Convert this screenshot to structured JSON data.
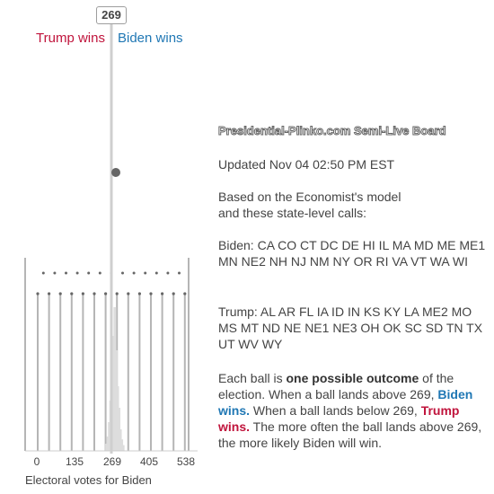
{
  "marker_value": "269",
  "legend": {
    "trump": "Trump wins",
    "biden": "Biden wins"
  },
  "axis": {
    "ticks": [
      "0",
      "135",
      "269",
      "405",
      "538"
    ],
    "title": "Electoral votes for Biden",
    "range": [
      0,
      538
    ],
    "midpoint": 269
  },
  "board": {
    "title": "Presidential-Plinko.com Semi-Live Board",
    "updated": "Updated Nov 04 02:50 PM EST",
    "based_line1": "Based on the Economist's model",
    "based_line2": "and these state-level calls:",
    "biden_calls": "Biden: CA CO CT DC DE HI IL MA MD ME ME1 MN NE2 NH NJ NM NY OR RI VA VT WA WI",
    "trump_calls": "Trump: AL AR FL IA ID IN KS KY LA ME2 MO MS MT ND NE NE1 NE3 OH OK SC SD TN TX UT WV WY",
    "explain": {
      "p1": "Each ball is ",
      "b1": "one possible outcome",
      "p2": " of the election. When a ball lands above 269, ",
      "b2": "Biden wins.",
      "p3": " When a ball lands below 269, ",
      "b3": "Trump wins.",
      "p4": " The more often the ball lands above 269, the more likely Biden will win."
    }
  },
  "colors": {
    "trump": "#c0143c",
    "biden": "#1f77b4",
    "text": "#444444",
    "peg": "#666666",
    "ball": "#666666",
    "pin": "#b5b5b5"
  },
  "icons": {
    "ball": "ball-icon",
    "pegs": "peg-icon"
  },
  "chart_data": {
    "type": "histogram",
    "x_label": "Electoral votes for Biden",
    "x_range": [
      0,
      538
    ],
    "threshold": 269,
    "distribution_note": "faint histogram of landed balls concentrated near 269-300",
    "bins_x": [
      250,
      255,
      260,
      265,
      270,
      275,
      280,
      285,
      290,
      295,
      300,
      305,
      310
    ],
    "bins_height": [
      0.05,
      0.1,
      0.2,
      0.35,
      0.55,
      0.8,
      1.0,
      0.7,
      0.45,
      0.3,
      0.15,
      0.08,
      0.04
    ]
  }
}
